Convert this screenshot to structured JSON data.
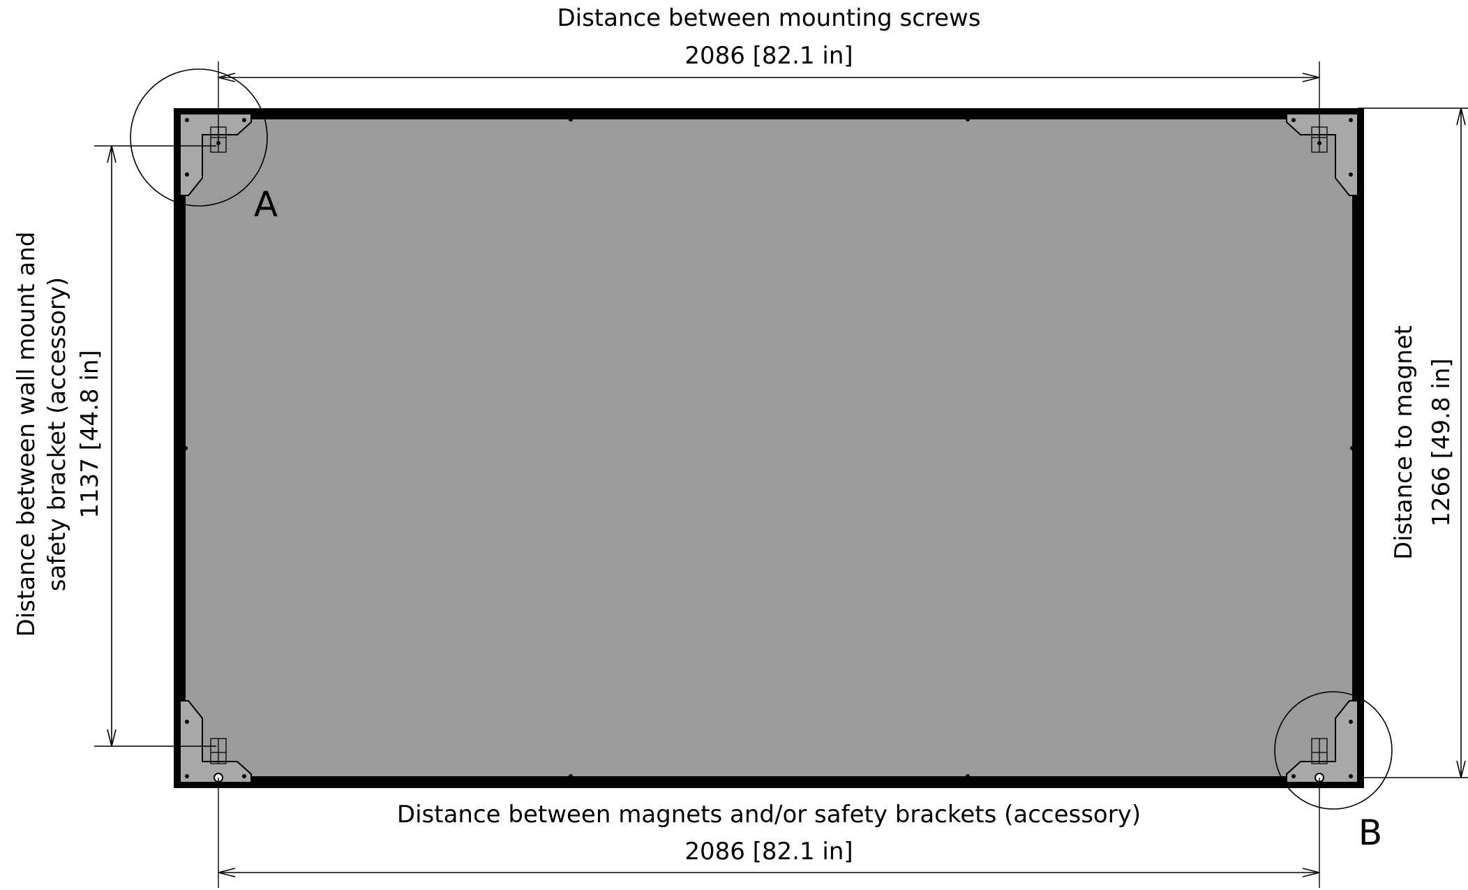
{
  "dimensions": {
    "top": {
      "label": "Distance between mounting screws",
      "value": "2086 [82.1 in]"
    },
    "bottom": {
      "label": "Distance between magnets and/or safety brackets (accessory)",
      "value": "2086 [82.1 in]"
    },
    "left": {
      "label_line1": "Distance between wall mount and",
      "label_line2": "safety bracket (accessory)",
      "value": "1137 [44.8 in]"
    },
    "right": {
      "label": "Distance to magnet",
      "value": "1266 [49.8 in]"
    }
  },
  "callouts": {
    "a": "A",
    "b": "B"
  },
  "colors": {
    "panel_fill": "#9b9b9b",
    "frame": "#000000",
    "bracket_fill": "#a8a8a8"
  }
}
